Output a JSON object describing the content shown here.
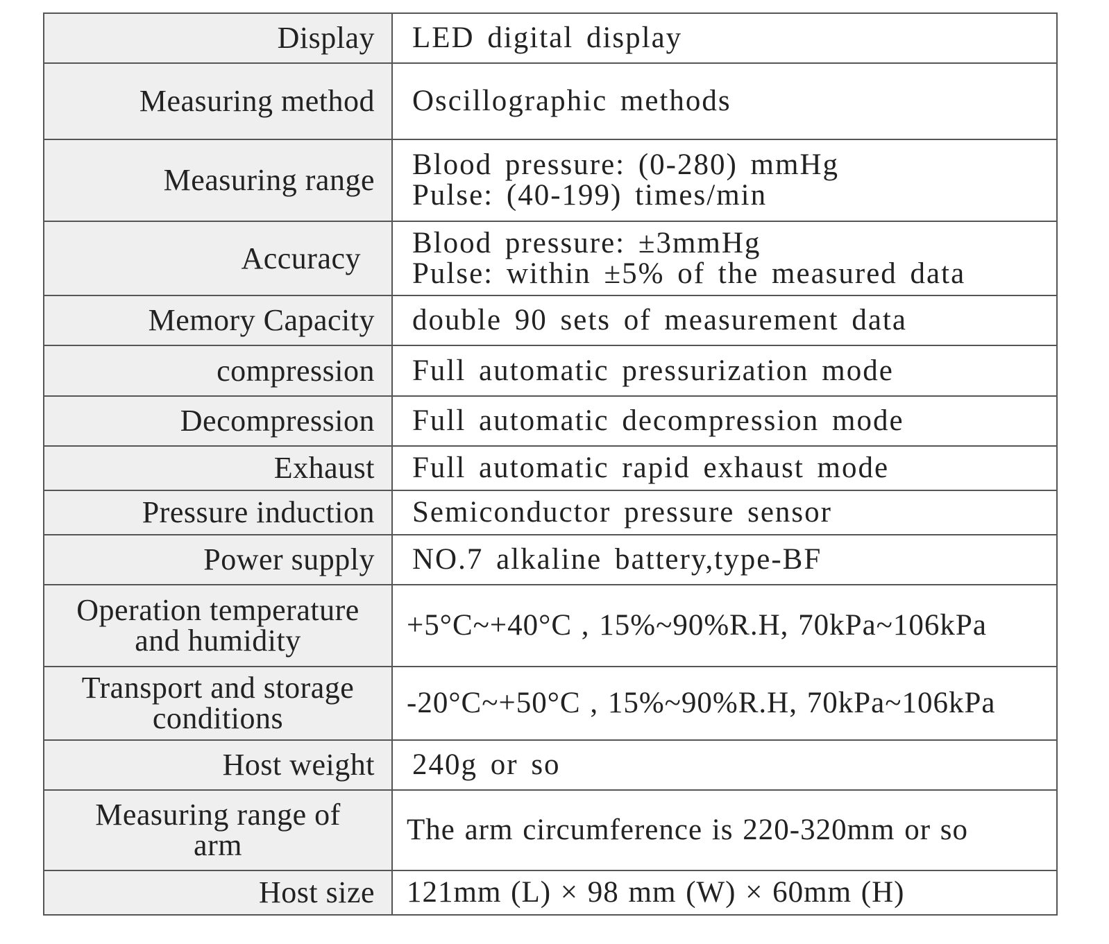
{
  "rows": [
    {
      "label": [
        "Display"
      ],
      "value": [
        "LED digital display"
      ]
    },
    {
      "label": [
        "Measuring method"
      ],
      "value": [
        "Oscillographic methods"
      ]
    },
    {
      "label": [
        "Measuring range"
      ],
      "value": [
        "Blood pressure: (0-280) mmHg",
        "Pulse: (40-199) times/min"
      ]
    },
    {
      "label": [
        "Accuracy"
      ],
      "value": [
        "Blood pressure: ±3mmHg",
        "Pulse: within ±5% of the measured data"
      ]
    },
    {
      "label": [
        "Memory Capacity"
      ],
      "value": [
        "double 90 sets of measurement data"
      ]
    },
    {
      "label": [
        "compression"
      ],
      "value": [
        "Full automatic pressurization mode"
      ]
    },
    {
      "label": [
        "Decompression"
      ],
      "value": [
        "Full automatic decompression mode"
      ]
    },
    {
      "label": [
        "Exhaust"
      ],
      "value": [
        "Full automatic rapid exhaust mode"
      ]
    },
    {
      "label": [
        "Pressure induction"
      ],
      "value": [
        "Semiconductor pressure sensor"
      ]
    },
    {
      "label": [
        "Power supply"
      ],
      "value": [
        "NO.7 alkaline battery,type-BF"
      ]
    },
    {
      "label": [
        "Operation temperature",
        "and humidity"
      ],
      "value": [
        "+5°C~+40°C , 15%~90%R.H, 70kPa~106kPa"
      ]
    },
    {
      "label": [
        "Transport and storage",
        "conditions"
      ],
      "value": [
        "-20°C~+50°C , 15%~90%R.H, 70kPa~106kPa"
      ]
    },
    {
      "label": [
        "Host weight"
      ],
      "value": [
        "240g or so"
      ]
    },
    {
      "label": [
        "Measuring range of",
        "arm"
      ],
      "value": [
        "The arm circumference is 220-320mm or so"
      ]
    },
    {
      "label": [
        "Host size"
      ],
      "value": [
        "121mm (L) × 98 mm (W) × 60mm (H)"
      ]
    }
  ]
}
